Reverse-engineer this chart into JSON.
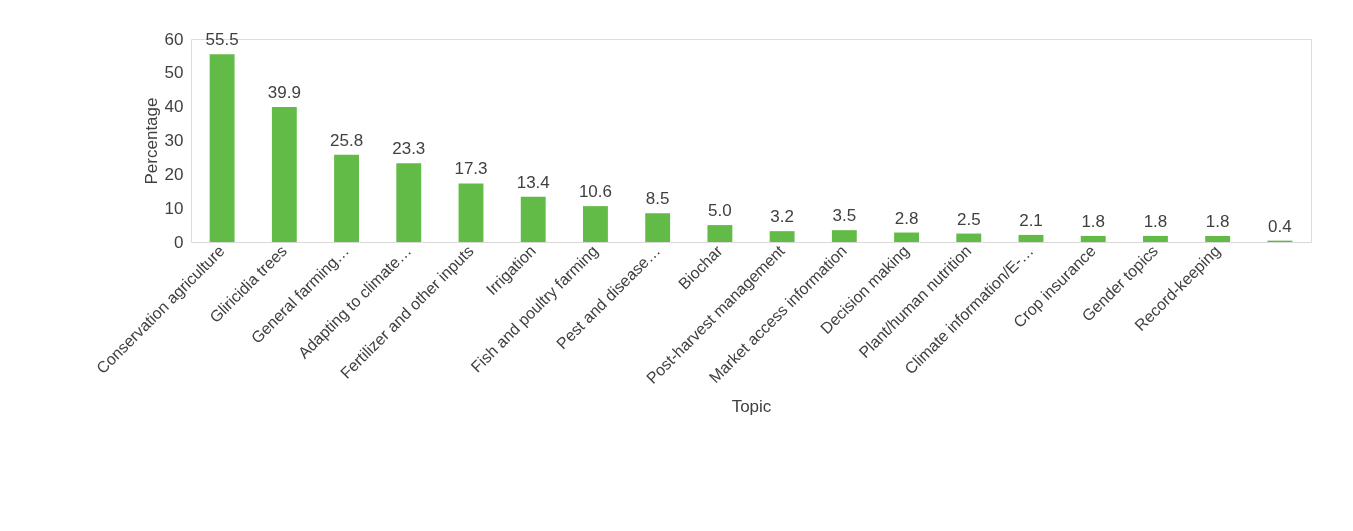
{
  "chart_data": {
    "type": "bar",
    "xlabel": "Topic",
    "ylabel": "Percentage",
    "categories": [
      "Conservation  agriculture",
      "Gliricidia trees",
      "General farming…",
      "Adapting to climate…",
      "Fertilizer and other inputs",
      "Irrigation",
      "Fish and poultry farming",
      "Pest  and disease…",
      "Biochar",
      "Post-harvest management",
      "Market access information",
      "Decision making",
      "Plant/human nutrition",
      "Climate information/E-…",
      "Crop insurance",
      "Gender topics",
      "Record-keeping",
      null
    ],
    "values": [
      55.5,
      39.9,
      25.8,
      23.3,
      17.3,
      13.4,
      10.6,
      8.5,
      5.0,
      3.2,
      3.5,
      2.8,
      2.5,
      2.1,
      1.8,
      1.8,
      1.8,
      0.4
    ],
    "value_labels": [
      "55.5",
      "39.9",
      "25.8",
      "23.3",
      "17.3",
      "13.4",
      "10.6",
      "8.5",
      "5.0",
      "3.2",
      "3.5",
      "2.8",
      "2.5",
      "2.1",
      "1.8",
      "1.8",
      "1.8",
      "0.4"
    ],
    "color": "#62bb46",
    "ylim": [
      0,
      60
    ],
    "yticks": [
      0,
      10,
      20,
      30,
      40,
      50,
      60
    ],
    "grid": false
  }
}
